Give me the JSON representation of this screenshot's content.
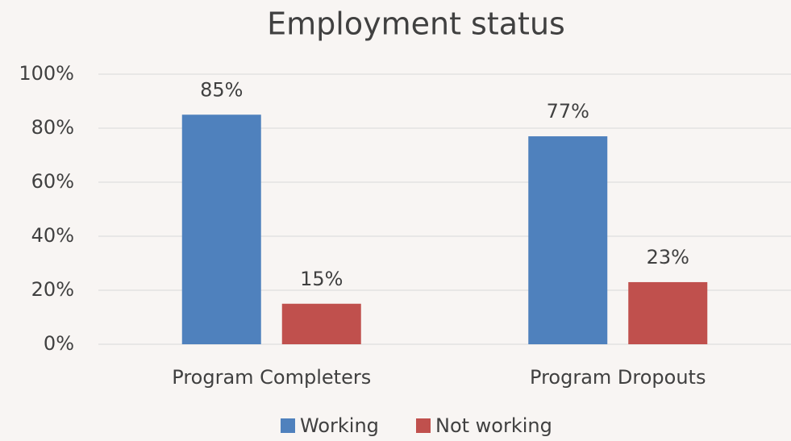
{
  "chart_data": {
    "type": "bar",
    "title": "Employment status",
    "categories": [
      "Program Completers",
      "Program Dropouts"
    ],
    "series": [
      {
        "name": "Working",
        "color": "#4f81bd",
        "values": [
          85,
          77
        ],
        "value_labels": [
          "85%",
          "77%"
        ]
      },
      {
        "name": "Not working",
        "color": "#c0504d",
        "values": [
          15,
          23
        ],
        "value_labels": [
          "15%",
          "23%"
        ]
      }
    ],
    "ylim": [
      0,
      100
    ],
    "yticks": [
      {
        "value": 0,
        "label": "0%"
      },
      {
        "value": 20,
        "label": "20%"
      },
      {
        "value": 40,
        "label": "40%"
      },
      {
        "value": 60,
        "label": "60%"
      },
      {
        "value": 80,
        "label": "80%"
      },
      {
        "value": 100,
        "label": "100%"
      }
    ],
    "grid": true,
    "legend": "bottom"
  }
}
